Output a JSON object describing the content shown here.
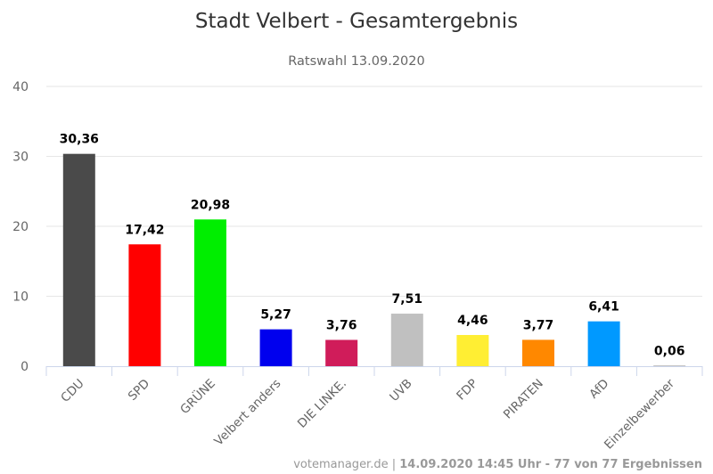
{
  "chart_data": {
    "type": "bar",
    "title": "Stadt Velbert - Gesamtergebnis",
    "subtitle": "Ratswahl 13.09.2020",
    "xlabel": "",
    "ylabel": "",
    "ylim": [
      0,
      40
    ],
    "yticks": [
      0,
      10,
      20,
      30,
      40
    ],
    "ytick_labels": [
      "0",
      "10",
      "20",
      "30",
      "40"
    ],
    "grid": true,
    "legend": "none",
    "categories": [
      "CDU",
      "SPD",
      "GRÜNE",
      "Velbert anders",
      "DIE LINKE.",
      "UVB",
      "FDP",
      "PIRATEN",
      "AfD",
      "Einzelbewerber"
    ],
    "values": [
      30.36,
      17.42,
      20.98,
      5.27,
      3.76,
      7.51,
      4.46,
      3.77,
      6.41,
      0.06
    ],
    "value_labels": [
      "30,36",
      "17,42",
      "20,98",
      "5,27",
      "3,76",
      "7,51",
      "4,46",
      "3,77",
      "6,41",
      "0,06"
    ],
    "colors": [
      "#4a4a4a",
      "#ff0000",
      "#00ee00",
      "#0000ee",
      "#d01c5a",
      "#c0c0c0",
      "#ffee33",
      "#ff8800",
      "#0099ff",
      "#888888"
    ]
  },
  "credits": {
    "source": "votemanager.de | ",
    "status": "14.09.2020 14:45 Uhr - 77 von 77 Ergebnissen"
  }
}
